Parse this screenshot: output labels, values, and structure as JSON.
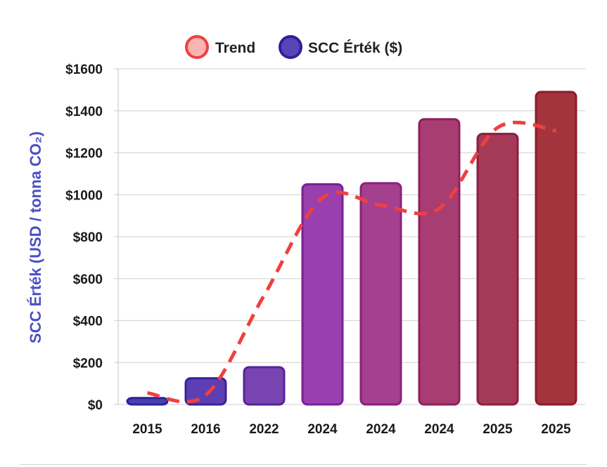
{
  "chart_data": {
    "type": "bar",
    "title": "",
    "xlabel": "",
    "ylabel": "SCC Érték (USD / tonna CO₂)",
    "ylim": [
      0,
      1600
    ],
    "yticks": [
      0,
      200,
      400,
      600,
      800,
      1000,
      1200,
      1400,
      1600
    ],
    "ytick_labels": [
      "$0",
      "$200",
      "$400",
      "$600",
      "$800",
      "$1000",
      "$1200",
      "$1400",
      "$1600"
    ],
    "grid": true,
    "legend_position": "top-center",
    "categories": [
      "2015",
      "2016",
      "2022",
      "2024",
      "2024",
      "2024",
      "2025",
      "2025"
    ],
    "series": [
      {
        "name": "SCC Érték ($)",
        "type": "bar",
        "values": [
          31,
          125,
          178,
          1050,
          1055,
          1360,
          1290,
          1490
        ],
        "colors": [
          "#4b3fb0",
          "#5e3fb3",
          "#7a44b0",
          "#9a3fae",
          "#a5408f",
          "#a73d70",
          "#a53a57",
          "#a3343e"
        ],
        "border_colors": [
          "#2c2196",
          "#3a2199",
          "#55239a",
          "#7a1f96",
          "#8c1f7c",
          "#8f1e5e",
          "#8e1c45",
          "#8e1a2a"
        ]
      },
      {
        "name": "Trend",
        "type": "line",
        "style": "dashed",
        "color": "#ee4040",
        "values": [
          55,
          45,
          520,
          985,
          950,
          935,
          1320,
          1305
        ]
      }
    ]
  },
  "legend": {
    "trend_label": "Trend",
    "scc_label": "SCC Érték ($)",
    "trend_swatch_fill": "#fbb3b3",
    "trend_swatch_stroke": "#ee4040",
    "scc_swatch_fill": "#5a45b8",
    "scc_swatch_stroke": "#2c2196"
  },
  "colors": {
    "ylabel": "#4a4fc2",
    "grid": "#d8d8d8",
    "axis": "#cfcfcf"
  }
}
